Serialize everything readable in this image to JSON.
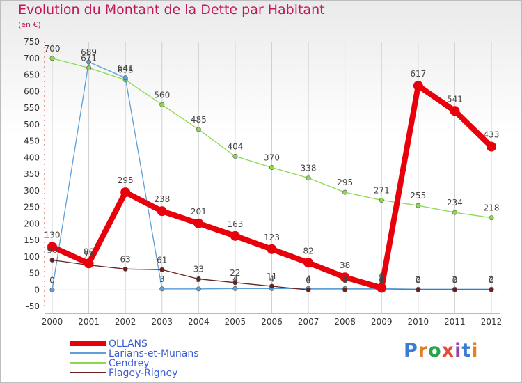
{
  "title": "Evolution du Montant de la Dette par Habitant",
  "unit": "(en €)",
  "brand": "Proxiti",
  "chart_data": {
    "type": "line",
    "title": "Evolution du Montant de la Dette par Habitant",
    "ylabel": "(en €)",
    "xlabel": "",
    "x": [
      "2000",
      "2001",
      "2002",
      "2003",
      "2004",
      "2005",
      "2006",
      "2007",
      "2008",
      "2009",
      "2010",
      "2011",
      "2012"
    ],
    "yticks": [
      "-50",
      "0",
      "50",
      "100",
      "150",
      "200",
      "250",
      "300",
      "350",
      "400",
      "450",
      "500",
      "550",
      "600",
      "650",
      "700",
      "750"
    ],
    "ylim": [
      -50,
      750
    ],
    "grid": "vertical",
    "legend": "bottom-left",
    "series": [
      {
        "name": "OLLANS",
        "color": "#e8000b",
        "values": [
          130,
          80,
          295,
          238,
          201,
          163,
          123,
          82,
          38,
          6,
          617,
          541,
          433
        ],
        "labels": [
          "130",
          "80",
          "295",
          "238",
          "201",
          "163",
          "123",
          "82",
          "38",
          "6",
          "617",
          "541",
          "433"
        ]
      },
      {
        "name": "Larians-et-Munans",
        "color": "#5d9fd6",
        "values": [
          0,
          689,
          641,
          3,
          3,
          4,
          4,
          4,
          4,
          4,
          2,
          2,
          2
        ],
        "labels": [
          "0",
          "689",
          "641",
          "3",
          "3",
          "4",
          "4",
          "4",
          "4",
          "4",
          "2",
          "2",
          "2"
        ]
      },
      {
        "name": "Cendrey",
        "color": "#8cd94e",
        "values": [
          700,
          671,
          635,
          560,
          485,
          404,
          370,
          338,
          295,
          271,
          255,
          234,
          218
        ],
        "labels": [
          "700",
          "671",
          "635",
          "560",
          "485",
          "404",
          "370",
          "338",
          "295",
          "271",
          "255",
          "234",
          "218"
        ]
      },
      {
        "name": "Flagey-Rigney",
        "color": "#6b1f1f",
        "values": [
          90,
          75,
          63,
          61,
          33,
          22,
          11,
          0,
          0,
          0,
          0,
          0,
          0
        ],
        "labels": [
          "90",
          "75",
          "63",
          "61",
          "33",
          "22",
          "11",
          "0",
          "0",
          "0",
          "0",
          "0",
          "0"
        ]
      }
    ]
  }
}
